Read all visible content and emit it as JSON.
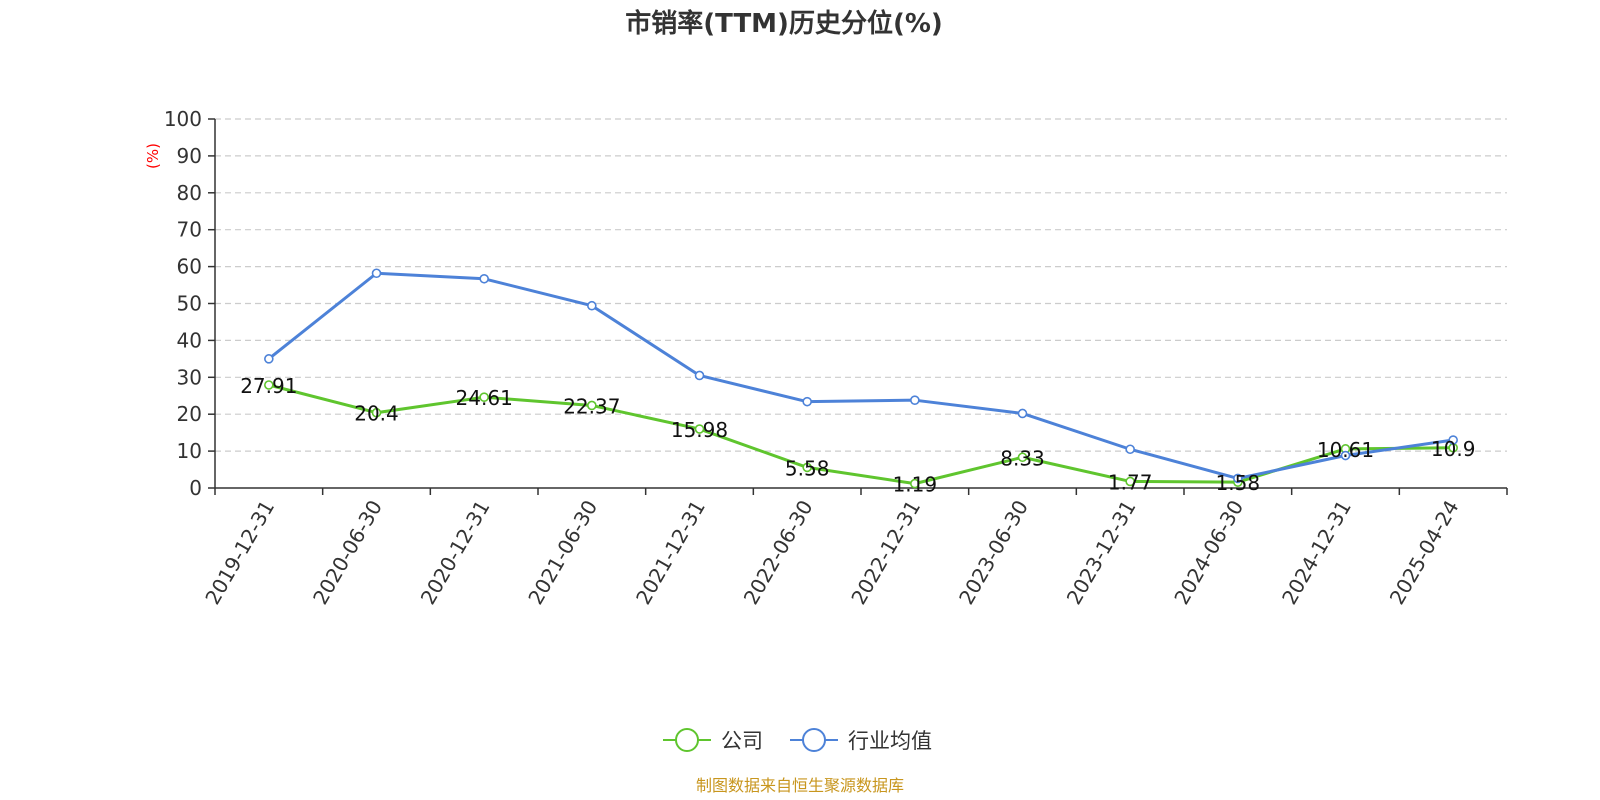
{
  "chart_data": {
    "type": "line",
    "title": "市销率(TTM)历史分位(%)",
    "ylabel": "(%)",
    "xlabel": "",
    "ylim": [
      0,
      100
    ],
    "yticks": [
      0,
      10,
      20,
      30,
      40,
      50,
      60,
      70,
      80,
      90,
      100
    ],
    "grid": true,
    "legend_position": "bottom",
    "categories": [
      "2019-12-31",
      "2020-06-30",
      "2020-12-31",
      "2021-06-30",
      "2021-12-31",
      "2022-06-30",
      "2022-12-31",
      "2023-06-30",
      "2023-12-31",
      "2024-06-30",
      "2024-12-31",
      "2025-04-24"
    ],
    "series": [
      {
        "name": "公司",
        "color": "#5fc52e",
        "values": [
          27.91,
          20.4,
          24.61,
          22.37,
          15.98,
          5.58,
          1.19,
          8.33,
          1.77,
          1.58,
          10.61,
          10.9
        ],
        "labels": [
          "27.91",
          "20.4",
          "24.61",
          "22.37",
          "15.98",
          "5.58",
          "1.19",
          "8.33",
          "1.77",
          "1.58",
          "10.61",
          "10.9"
        ]
      },
      {
        "name": "行业均值",
        "color": "#4d82d8",
        "values": [
          35,
          58.2,
          56.7,
          49.4,
          30.5,
          23.4,
          23.8,
          20.2,
          10.5,
          2.6,
          8.8,
          13
        ]
      }
    ],
    "source": "制图数据来自恒生聚源数据库",
    "source_color": "#c8961e",
    "ylabel_color": "#ff0000",
    "axis_color": "#333333",
    "grid_color": "#cccccc"
  }
}
